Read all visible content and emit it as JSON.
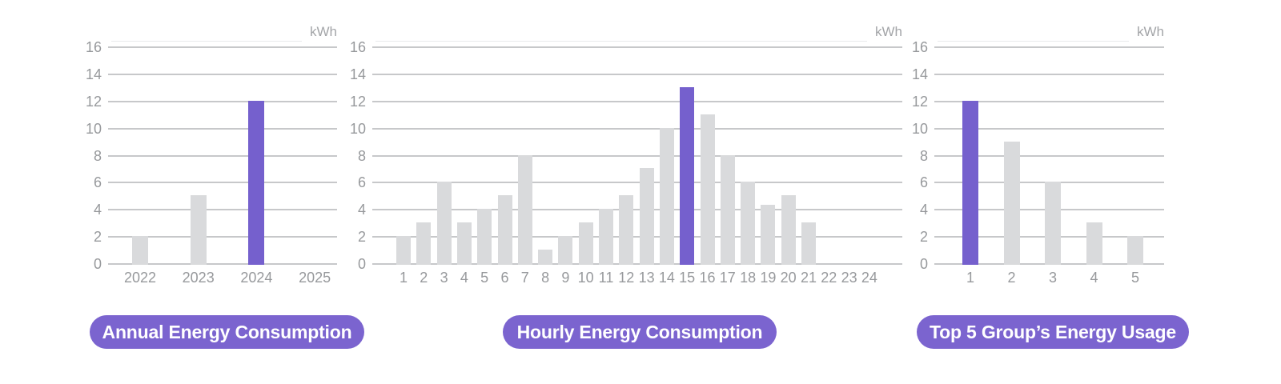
{
  "unit": "kWh",
  "colors": {
    "accent": "#7560CD",
    "button": "#7B64CF",
    "bar": "#D9DADC",
    "gridline": "#C7C8CA",
    "axis_text": "#97999C"
  },
  "y_axis": {
    "min": 0,
    "max": 16,
    "step": 2,
    "tick_labels": [
      "0",
      "2",
      "4",
      "6",
      "8",
      "10",
      "12",
      "14",
      "16"
    ]
  },
  "chart_data": [
    {
      "type": "bar",
      "title_button": "Annual Energy Consumption",
      "unit": "kWh",
      "xlabel": "",
      "ylabel": "kWh",
      "ylim": [
        0,
        16
      ],
      "grid": true,
      "categories": [
        "2022",
        "2023",
        "2024",
        "2025"
      ],
      "values": [
        2,
        5,
        12,
        0
      ],
      "highlight_index": 2
    },
    {
      "type": "bar",
      "title_button": "Hourly Energy Consumption",
      "unit": "kWh",
      "xlabel": "",
      "ylabel": "kWh",
      "ylim": [
        0,
        16
      ],
      "grid": true,
      "categories": [
        "1",
        "2",
        "3",
        "4",
        "5",
        "6",
        "7",
        "8",
        "9",
        "10",
        "11",
        "12",
        "13",
        "14",
        "15",
        "16",
        "17",
        "18",
        "19",
        "20",
        "21",
        "22",
        "23",
        "24"
      ],
      "values": [
        2,
        3,
        6,
        3,
        4,
        5,
        8,
        1,
        2,
        3,
        4,
        5,
        7,
        10,
        13,
        11,
        8,
        6,
        4.3,
        5,
        3,
        0,
        0,
        0
      ],
      "highlight_index": 14
    },
    {
      "type": "bar",
      "title_button": "Top 5 Group’s Energy Usage",
      "unit": "kWh",
      "xlabel": "",
      "ylabel": "kWh",
      "ylim": [
        0,
        16
      ],
      "grid": true,
      "categories": [
        "1",
        "2",
        "3",
        "4",
        "5"
      ],
      "values": [
        12,
        9,
        6,
        3,
        2
      ],
      "highlight_index": 0
    }
  ]
}
